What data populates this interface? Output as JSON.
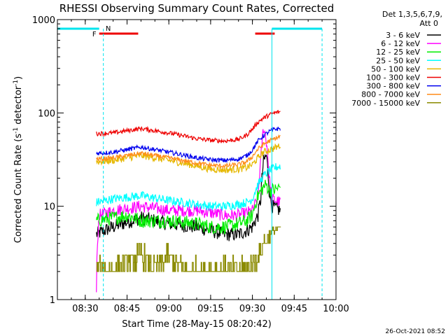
{
  "colors": {
    "background": "#ffffff",
    "axis": "#000000",
    "cyan": "#00e5ee",
    "red": "#ee0000",
    "att_state": "#00e5ee"
  },
  "chart_data": {
    "type": "line",
    "title": "RHESSI Observing Summary Count Rates, Corrected",
    "xlabel": "Start Time (28-May-15 08:20:42)",
    "ylabel": "Corrected Count Rate (s-1 detector-1)",
    "ylabel_parts": {
      "a": "Corrected Count Rate (s",
      "sup1": "-1",
      "b": " detector",
      "sup2": "-1",
      "c": ")"
    },
    "yscale": "log",
    "ylim": [
      1,
      1000
    ],
    "xlim_minutes_after_0820": [
      0,
      100
    ],
    "x_tick_minutes_after_0820": [
      10,
      25,
      40,
      55,
      70,
      85,
      100
    ],
    "x_tick_labels": [
      "08:30",
      "08:45",
      "09:00",
      "09:15",
      "09:30",
      "09:45",
      "10:00"
    ],
    "y_tick_values": [
      1,
      10,
      100,
      1000
    ],
    "y_tick_labels": [
      "1",
      "10",
      "100",
      "1000"
    ],
    "grid": false,
    "legend_placement": "outside-right",
    "legend_header": [
      "Det 1,3,5,6,7,9,",
      "Att 0"
    ],
    "series": [
      {
        "name": "3 - 6 keV",
        "color": "#000000",
        "noise": 0.08,
        "x": [
          14,
          20,
          30,
          40,
          50,
          55,
          60,
          65,
          68,
          70,
          72,
          73,
          74,
          75,
          76,
          77,
          80
        ],
        "y": [
          5,
          6,
          7.5,
          6.5,
          6,
          5.5,
          5,
          5,
          5.5,
          6,
          8,
          12,
          30,
          35,
          15,
          10,
          9
        ]
      },
      {
        "name": "6 - 12 keV",
        "color": "#ff00ff",
        "noise": 0.07,
        "x": [
          14,
          15,
          20,
          30,
          40,
          50,
          55,
          60,
          65,
          68,
          70,
          72,
          73,
          74,
          75,
          76,
          77,
          80
        ],
        "y": [
          1.2,
          8,
          9,
          10,
          9,
          9,
          8.5,
          8,
          8,
          8.5,
          9,
          12,
          30,
          70,
          50,
          20,
          12,
          11
        ]
      },
      {
        "name": "12 - 25 keV",
        "color": "#00ee00",
        "noise": 0.08,
        "x": [
          14,
          20,
          25,
          30,
          40,
          50,
          55,
          60,
          65,
          68,
          70,
          72,
          74,
          75,
          76,
          78,
          80
        ],
        "y": [
          7,
          7.5,
          8,
          7,
          7,
          6.5,
          6,
          6,
          6.5,
          7,
          8,
          13,
          16,
          17,
          15,
          15,
          16
        ]
      },
      {
        "name": "25 - 50 keV",
        "color": "#00ffff",
        "noise": 0.05,
        "x": [
          14,
          20,
          30,
          40,
          50,
          55,
          60,
          65,
          68,
          70,
          72,
          74,
          76,
          78,
          80
        ],
        "y": [
          11,
          12,
          13,
          11.5,
          10.5,
          10,
          10,
          10.5,
          11,
          12,
          17,
          21,
          24,
          26,
          27
        ]
      },
      {
        "name": "50 - 100 keV",
        "color": "#e6b800",
        "noise": 0.04,
        "x": [
          14,
          20,
          30,
          40,
          50,
          55,
          60,
          65,
          68,
          70,
          72,
          74,
          76,
          78,
          80
        ],
        "y": [
          30,
          31,
          35,
          31,
          27,
          25,
          24.5,
          25,
          26,
          28,
          33,
          38,
          40,
          42,
          45
        ]
      },
      {
        "name": "100 - 300 keV",
        "color": "#ee0000",
        "noise": 0.025,
        "x": [
          14,
          20,
          30,
          40,
          50,
          55,
          60,
          65,
          68,
          70,
          72,
          74,
          76,
          78,
          80
        ],
        "y": [
          60,
          61,
          68,
          61,
          53,
          51,
          50,
          52,
          58,
          67,
          80,
          88,
          95,
          100,
          103
        ]
      },
      {
        "name": "300 - 800 keV",
        "color": "#0000ee",
        "noise": 0.025,
        "x": [
          14,
          20,
          30,
          40,
          50,
          55,
          60,
          65,
          68,
          70,
          72,
          74,
          76,
          78,
          80
        ],
        "y": [
          37,
          38,
          43,
          38,
          33,
          31.5,
          31,
          32,
          35,
          40,
          50,
          57,
          63,
          67,
          68
        ]
      },
      {
        "name": "800 - 7000 keV",
        "color": "#ff8c1a",
        "noise": 0.025,
        "x": [
          14,
          20,
          30,
          40,
          50,
          55,
          60,
          65,
          68,
          70,
          72,
          74,
          76,
          78,
          80
        ],
        "y": [
          32,
          33,
          37,
          33,
          29,
          27.5,
          27,
          28,
          30,
          34,
          41,
          46,
          50,
          53,
          56
        ]
      },
      {
        "name": "7000 - 15000 keV",
        "color": "#8b8b00",
        "step": true,
        "x": [
          14,
          20,
          30,
          35,
          40,
          45,
          50,
          55,
          60,
          65,
          68,
          70,
          72,
          74,
          76,
          78,
          80
        ],
        "y": [
          2,
          2,
          3,
          2,
          3,
          2,
          2,
          2,
          2,
          2,
          2,
          2.5,
          3,
          4,
          5,
          5.5,
          6
        ]
      }
    ],
    "annotations": [
      {
        "text": "F",
        "x_minutes": 14,
        "color": "#ee0000"
      },
      {
        "text": "N",
        "x_minutes": 16.5,
        "color": "#00e5ee"
      }
    ],
    "top_bars": [
      {
        "color": "#00e5ee",
        "x0": 0,
        "x1": 15
      },
      {
        "color": "#00e5ee",
        "x0": 77,
        "x1": 95
      },
      {
        "color": "#ee0000",
        "x0": 15,
        "x1": 29
      },
      {
        "color": "#ee0000",
        "x0": 71,
        "x1": 78
      }
    ],
    "vertical_lines": [
      {
        "x_minutes": 16.5,
        "color": "#00e5ee",
        "dashed": true
      },
      {
        "x_minutes": 77,
        "color": "#00e5ee",
        "dashed": false
      },
      {
        "x_minutes": 95,
        "color": "#00e5ee",
        "dashed": true
      }
    ],
    "footer_timestamp": "26-Oct-2021 08:52"
  }
}
